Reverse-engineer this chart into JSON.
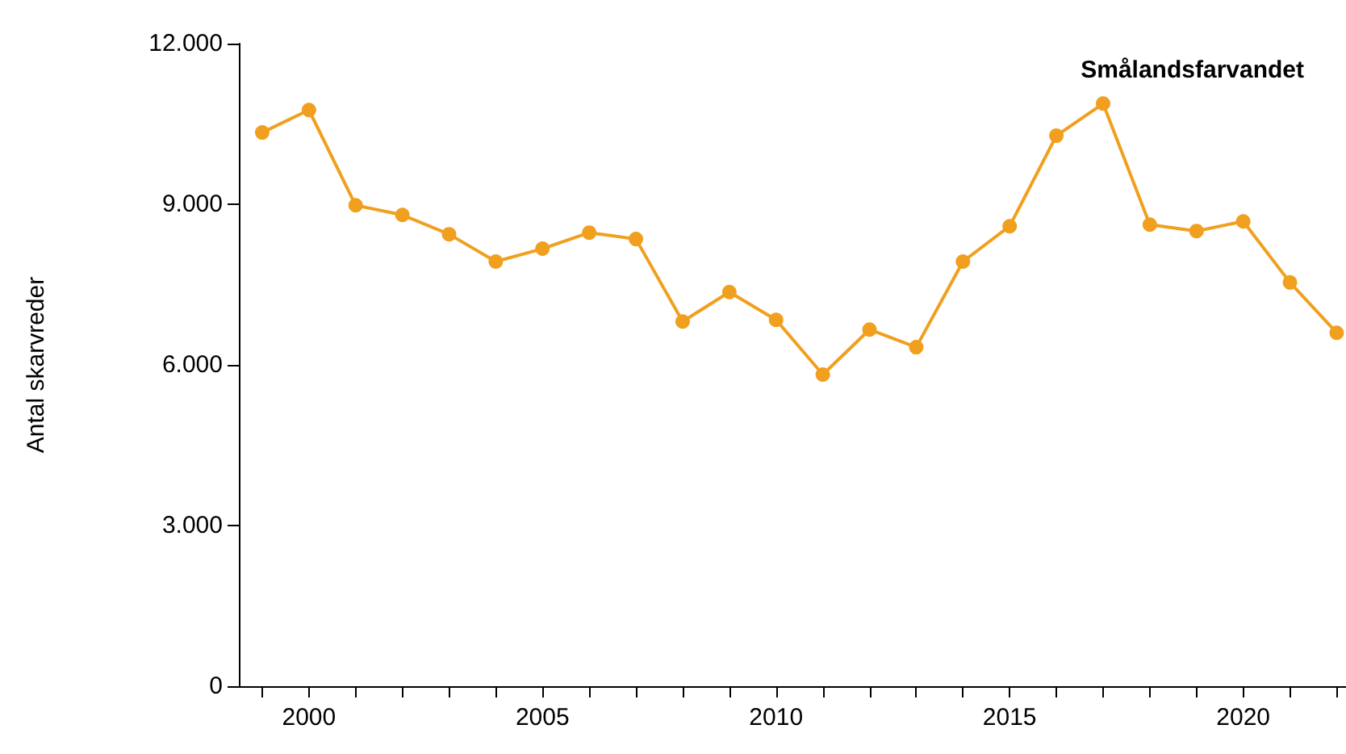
{
  "chart_data": {
    "type": "line",
    "ylabel": "Antal skarvreder",
    "x": [
      1999,
      2000,
      2001,
      2002,
      2003,
      2004,
      2005,
      2006,
      2007,
      2008,
      2009,
      2010,
      2011,
      2012,
      2013,
      2014,
      2015,
      2016,
      2017,
      2018,
      2019,
      2020,
      2021,
      2022
    ],
    "series": [
      {
        "name": "Smålandsfarvandet",
        "color": "#f0a01e",
        "values": [
          10340,
          10760,
          8980,
          8800,
          8440,
          7930,
          8170,
          8470,
          8350,
          6810,
          7360,
          6840,
          5820,
          6660,
          6330,
          7930,
          8590,
          10280,
          10880,
          8620,
          8500,
          8680,
          7540,
          6600
        ]
      }
    ],
    "xlim": [
      1998.5,
      2022.2
    ],
    "xticks": [
      {
        "value": 1999,
        "label": null
      },
      2000,
      {
        "value": 2001,
        "label": null
      },
      {
        "value": 2002,
        "label": null
      },
      {
        "value": 2003,
        "label": null
      },
      {
        "value": 2004,
        "label": null
      },
      2005,
      {
        "value": 2006,
        "label": null
      },
      {
        "value": 2007,
        "label": null
      },
      {
        "value": 2008,
        "label": null
      },
      {
        "value": 2009,
        "label": null
      },
      2010,
      {
        "value": 2011,
        "label": null
      },
      {
        "value": 2012,
        "label": null
      },
      {
        "value": 2013,
        "label": null
      },
      {
        "value": 2014,
        "label": null
      },
      2015,
      {
        "value": 2016,
        "label": null
      },
      {
        "value": 2017,
        "label": null
      },
      {
        "value": 2018,
        "label": null
      },
      {
        "value": 2019,
        "label": null
      },
      2020,
      {
        "value": 2021,
        "label": null
      },
      {
        "value": 2022,
        "label": null
      }
    ],
    "ylim": [
      0,
      12000
    ],
    "yticks": [
      0,
      {
        "value": 3000,
        "label": "3.000"
      },
      {
        "value": 6000,
        "label": "6.000"
      },
      {
        "value": 9000,
        "label": "9.000"
      },
      {
        "value": 12000,
        "label": "12.000"
      }
    ],
    "grid": false,
    "marker": "circle",
    "line_style": "solid"
  }
}
